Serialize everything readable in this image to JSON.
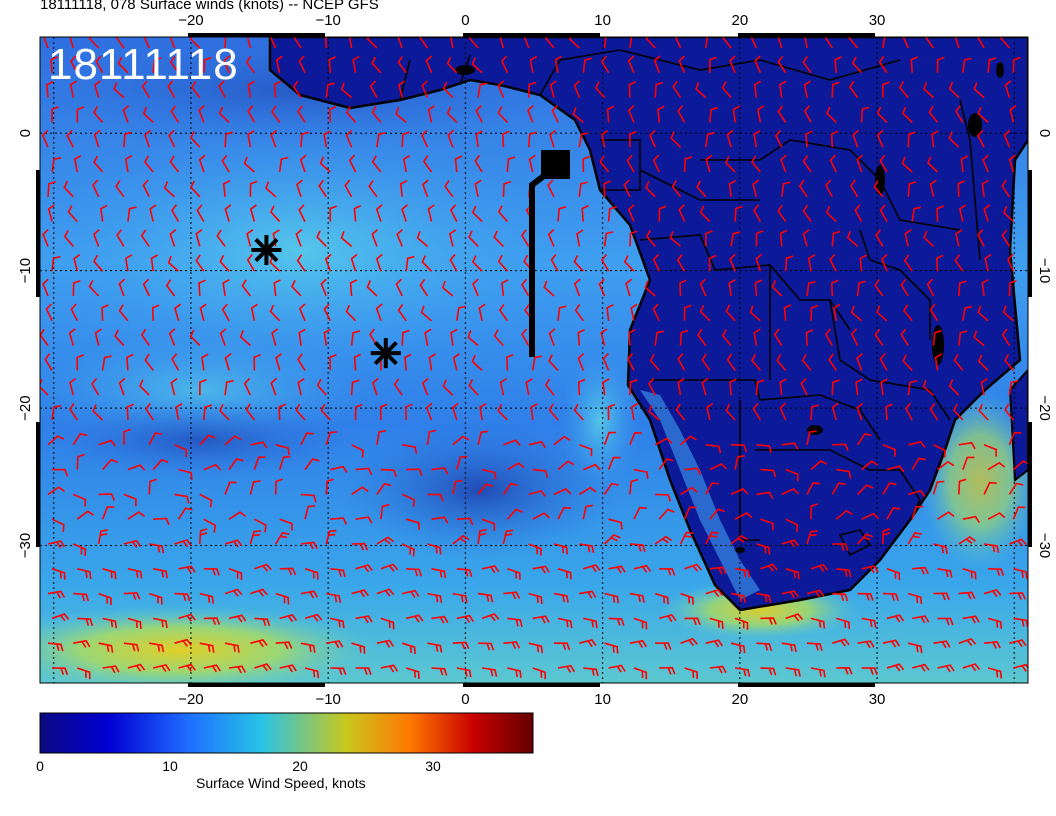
{
  "title": "18111118, 078 Surface winds (knots) -- NCEP GFS",
  "date_stamp": "18111118",
  "map": {
    "lon_ticks": [
      "-20",
      "-10",
      "0",
      "10",
      "20",
      "30"
    ],
    "lat_ticks": [
      "0",
      "-10",
      "-20",
      "-30"
    ],
    "lon_range": [
      -31,
      41
    ],
    "lat_range": [
      -40,
      7
    ],
    "wind_barb_color": "#ff0000",
    "storm_markers": [
      {
        "name": "storm-marker-1",
        "lon": -14.5,
        "lat": -8.5
      },
      {
        "name": "storm-marker-2",
        "lon": -5.8,
        "lat": -16
      }
    ]
  },
  "colorbar": {
    "label": "Surface Wind Speed, knots",
    "ticks": [
      "0",
      "10",
      "20",
      "30"
    ],
    "range": [
      0,
      38
    ],
    "colors": [
      "#0a0a82",
      "#0000d2",
      "#1e6eff",
      "#28c3e6",
      "#c8c81e",
      "#ff7800",
      "#c80000",
      "#640000"
    ]
  }
}
